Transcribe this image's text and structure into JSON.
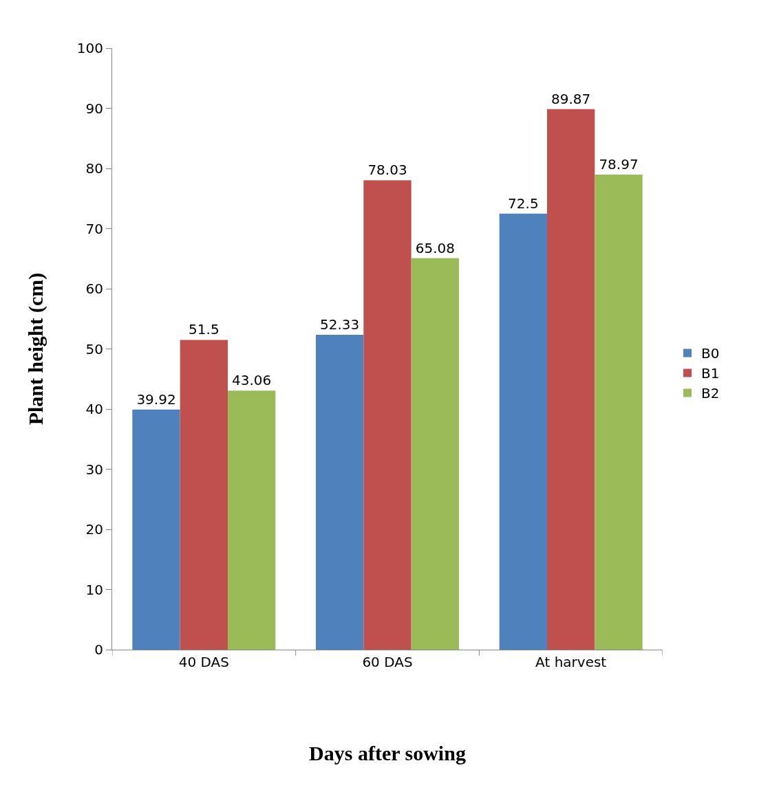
{
  "chart_data": {
    "type": "bar",
    "xlabel": "Days after sowing",
    "ylabel": "Plant height (cm)",
    "categories": [
      "40 DAS",
      "60 DAS",
      "At harvest"
    ],
    "series": [
      {
        "name": "B0",
        "color": "#4f81bd",
        "values": [
          39.92,
          52.33,
          72.5
        ]
      },
      {
        "name": "B1",
        "color": "#c0504d",
        "values": [
          51.5,
          78.03,
          89.87
        ]
      },
      {
        "name": "B2",
        "color": "#9bbb59",
        "values": [
          43.06,
          65.08,
          78.97
        ]
      }
    ],
    "ylim": [
      0,
      100
    ],
    "yticks": [
      0,
      10,
      20,
      30,
      40,
      50,
      60,
      70,
      80,
      90,
      100
    ],
    "data_labels": true,
    "legend": "right"
  }
}
